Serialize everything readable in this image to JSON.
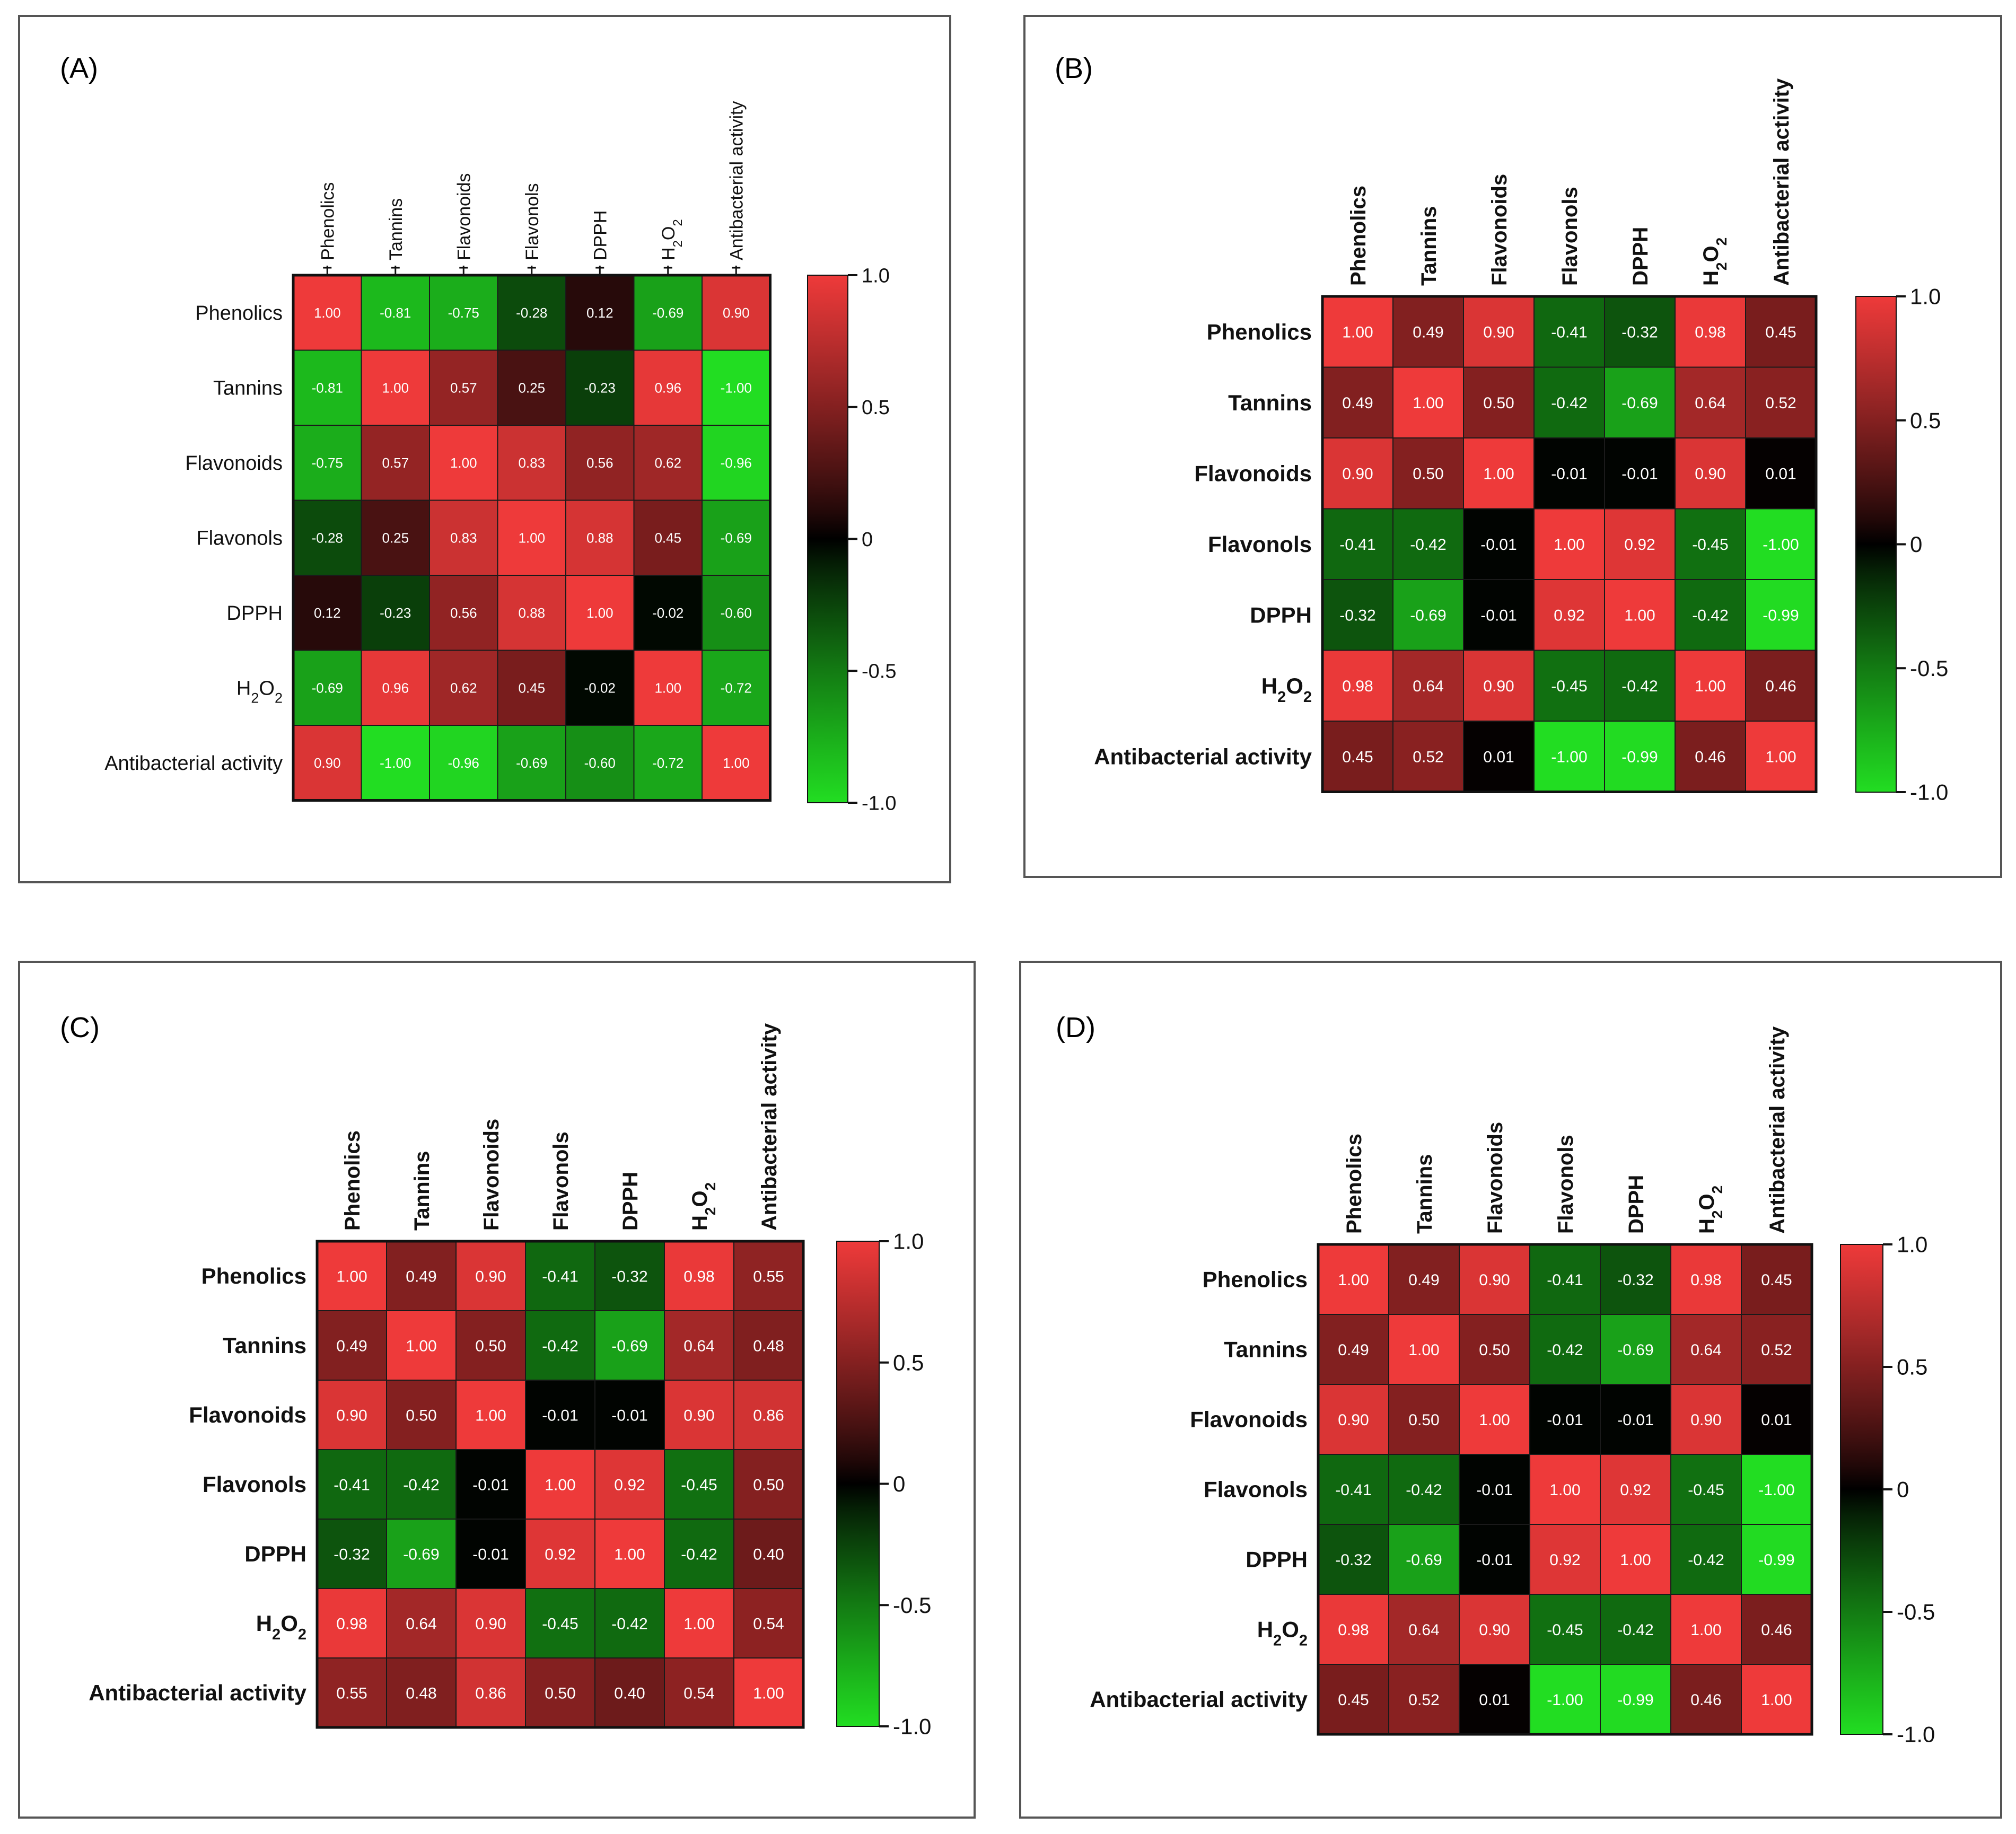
{
  "figure": {
    "variables": [
      "Phenolics",
      "Tannins",
      "Flavonoids",
      "Flavonols",
      "DPPH",
      "H2O2",
      "Antibacterial activity"
    ]
  },
  "chart_data": [
    {
      "type": "heatmap",
      "panel": "(A)",
      "title": "(A)",
      "labels": [
        "Phenolics",
        "Tannins",
        "Flavonoids",
        "Flavonols",
        "DPPH",
        "H2O2",
        "Antibacterial activity"
      ],
      "values": [
        [
          "1.00",
          "-0.81",
          "-0.75",
          "-0.28",
          "0.12",
          "-0.69",
          "0.90"
        ],
        [
          "-0.81",
          "1.00",
          "0.57",
          "0.25",
          "-0.23",
          "0.96",
          "-1.00"
        ],
        [
          "-0.75",
          "0.57",
          "1.00",
          "0.83",
          "0.56",
          "0.62",
          "-0.96"
        ],
        [
          "-0.28",
          "0.25",
          "0.83",
          "1.00",
          "0.88",
          "0.45",
          "-0.69"
        ],
        [
          "0.12",
          "-0.23",
          "0.56",
          "0.88",
          "1.00",
          "-0.02",
          "-0.60"
        ],
        [
          "-0.69",
          "0.96",
          "0.62",
          "0.45",
          "-0.02",
          "1.00",
          "-0.72"
        ],
        [
          "0.90",
          "-1.00",
          "-0.96",
          "-0.69",
          "-0.60",
          "-0.72",
          "1.00"
        ]
      ],
      "colorbar": {
        "range": [
          -1,
          1
        ],
        "ticks": [
          "1.0",
          "0.5",
          "0",
          "-0.5",
          "-1.0"
        ]
      },
      "colors": {
        "high": "#ee3a3a",
        "mid": "#000000",
        "low": "#22dd22"
      }
    },
    {
      "type": "heatmap",
      "panel": "(B)",
      "title": "(B)",
      "labels": [
        "Phenolics",
        "Tannins",
        "Flavonoids",
        "Flavonols",
        "DPPH",
        "H2O2",
        "Antibacterial activity"
      ],
      "values": [
        [
          "1.00",
          "0.49",
          "0.90",
          "-0.41",
          "-0.32",
          "0.98",
          "0.45"
        ],
        [
          "0.49",
          "1.00",
          "0.50",
          "-0.42",
          "-0.69",
          "0.64",
          "0.52"
        ],
        [
          "0.90",
          "0.50",
          "1.00",
          "-0.01",
          "-0.01",
          "0.90",
          "0.01"
        ],
        [
          "-0.41",
          "-0.42",
          "-0.01",
          "1.00",
          "0.92",
          "-0.45",
          "-1.00"
        ],
        [
          "-0.32",
          "-0.69",
          "-0.01",
          "0.92",
          "1.00",
          "-0.42",
          "-0.99"
        ],
        [
          "0.98",
          "0.64",
          "0.90",
          "-0.45",
          "-0.42",
          "1.00",
          "0.46"
        ],
        [
          "0.45",
          "0.52",
          "0.01",
          "-1.00",
          "-0.99",
          "0.46",
          "1.00"
        ]
      ],
      "colorbar": {
        "range": [
          -1,
          1
        ],
        "ticks": [
          "1.0",
          "0.5",
          "0",
          "-0.5",
          "-1.0"
        ]
      },
      "colors": {
        "high": "#ee3a3a",
        "mid": "#000000",
        "low": "#22dd22"
      }
    },
    {
      "type": "heatmap",
      "panel": "(C)",
      "title": "(C)",
      "labels": [
        "Phenolics",
        "Tannins",
        "Flavonoids",
        "Flavonols",
        "DPPH",
        "H2O2",
        "Antibacterial activity"
      ],
      "values": [
        [
          "1.00",
          "0.49",
          "0.90",
          "-0.41",
          "-0.32",
          "0.98",
          "0.55"
        ],
        [
          "0.49",
          "1.00",
          "0.50",
          "-0.42",
          "-0.69",
          "0.64",
          "0.48"
        ],
        [
          "0.90",
          "0.50",
          "1.00",
          "-0.01",
          "-0.01",
          "0.90",
          "0.86"
        ],
        [
          "-0.41",
          "-0.42",
          "-0.01",
          "1.00",
          "0.92",
          "-0.45",
          "0.50"
        ],
        [
          "-0.32",
          "-0.69",
          "-0.01",
          "0.92",
          "1.00",
          "-0.42",
          "0.40"
        ],
        [
          "0.98",
          "0.64",
          "0.90",
          "-0.45",
          "-0.42",
          "1.00",
          "0.54"
        ],
        [
          "0.55",
          "0.48",
          "0.86",
          "0.50",
          "0.40",
          "0.54",
          "1.00"
        ]
      ],
      "colorbar": {
        "range": [
          -1,
          1
        ],
        "ticks": [
          "1.0",
          "0.5",
          "0",
          "-0.5",
          "-1.0"
        ]
      },
      "colors": {
        "high": "#ee3a3a",
        "mid": "#000000",
        "low": "#22dd22"
      }
    },
    {
      "type": "heatmap",
      "panel": "(D)",
      "title": "(D)",
      "labels": [
        "Phenolics",
        "Tannins",
        "Flavonoids",
        "Flavonols",
        "DPPH",
        "H2O2",
        "Antibacterial activity"
      ],
      "values": [
        [
          "1.00",
          "0.49",
          "0.90",
          "-0.41",
          "-0.32",
          "0.98",
          "0.45"
        ],
        [
          "0.49",
          "1.00",
          "0.50",
          "-0.42",
          "-0.69",
          "0.64",
          "0.52"
        ],
        [
          "0.90",
          "0.50",
          "1.00",
          "-0.01",
          "-0.01",
          "0.90",
          "0.01"
        ],
        [
          "-0.41",
          "-0.42",
          "-0.01",
          "1.00",
          "0.92",
          "-0.45",
          "-1.00"
        ],
        [
          "-0.32",
          "-0.69",
          "-0.01",
          "0.92",
          "1.00",
          "-0.42",
          "-0.99"
        ],
        [
          "0.98",
          "0.64",
          "0.90",
          "-0.45",
          "-0.42",
          "1.00",
          "0.46"
        ],
        [
          "0.45",
          "0.52",
          "0.01",
          "-1.00",
          "-0.99",
          "0.46",
          "1.00"
        ]
      ],
      "colorbar": {
        "range": [
          -1,
          1
        ],
        "ticks": [
          "1.0",
          "0.5",
          "0",
          "-0.5",
          "-1.0"
        ]
      },
      "colors": {
        "high": "#ee3a3a",
        "mid": "#000000",
        "low": "#22dd22"
      }
    }
  ]
}
